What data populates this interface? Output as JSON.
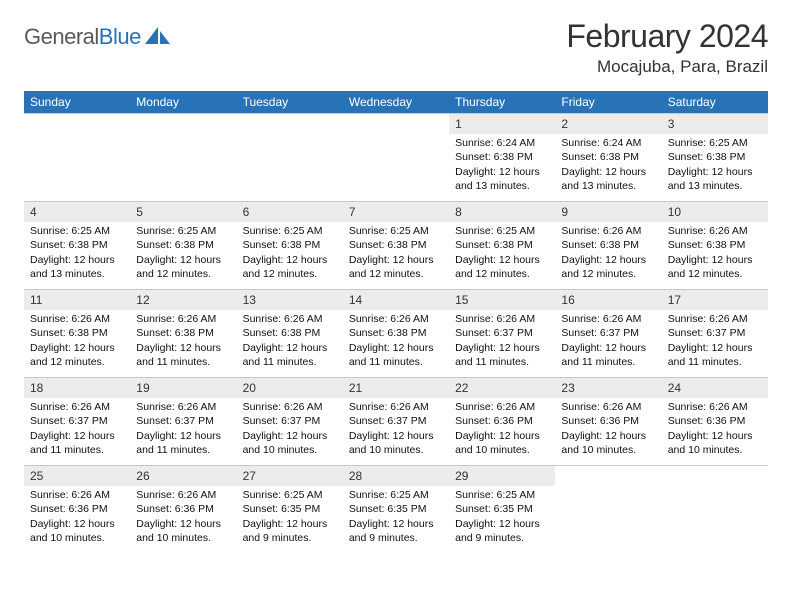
{
  "logo": {
    "text_gray": "General",
    "text_blue": "Blue",
    "icon_fill": "#2873b8"
  },
  "title": "February 2024",
  "location": "Mocajuba, Para, Brazil",
  "colors": {
    "header_bg": "#2873b8",
    "header_text": "#ffffff",
    "daynum_bg": "#ececec",
    "border": "#c8c8c8",
    "text": "#111111"
  },
  "day_headers": [
    "Sunday",
    "Monday",
    "Tuesday",
    "Wednesday",
    "Thursday",
    "Friday",
    "Saturday"
  ],
  "weeks": [
    [
      {
        "n": "",
        "sr": "",
        "ss": "",
        "dl": ""
      },
      {
        "n": "",
        "sr": "",
        "ss": "",
        "dl": ""
      },
      {
        "n": "",
        "sr": "",
        "ss": "",
        "dl": ""
      },
      {
        "n": "",
        "sr": "",
        "ss": "",
        "dl": ""
      },
      {
        "n": "1",
        "sr": "Sunrise: 6:24 AM",
        "ss": "Sunset: 6:38 PM",
        "dl": "Daylight: 12 hours and 13 minutes."
      },
      {
        "n": "2",
        "sr": "Sunrise: 6:24 AM",
        "ss": "Sunset: 6:38 PM",
        "dl": "Daylight: 12 hours and 13 minutes."
      },
      {
        "n": "3",
        "sr": "Sunrise: 6:25 AM",
        "ss": "Sunset: 6:38 PM",
        "dl": "Daylight: 12 hours and 13 minutes."
      }
    ],
    [
      {
        "n": "4",
        "sr": "Sunrise: 6:25 AM",
        "ss": "Sunset: 6:38 PM",
        "dl": "Daylight: 12 hours and 13 minutes."
      },
      {
        "n": "5",
        "sr": "Sunrise: 6:25 AM",
        "ss": "Sunset: 6:38 PM",
        "dl": "Daylight: 12 hours and 12 minutes."
      },
      {
        "n": "6",
        "sr": "Sunrise: 6:25 AM",
        "ss": "Sunset: 6:38 PM",
        "dl": "Daylight: 12 hours and 12 minutes."
      },
      {
        "n": "7",
        "sr": "Sunrise: 6:25 AM",
        "ss": "Sunset: 6:38 PM",
        "dl": "Daylight: 12 hours and 12 minutes."
      },
      {
        "n": "8",
        "sr": "Sunrise: 6:25 AM",
        "ss": "Sunset: 6:38 PM",
        "dl": "Daylight: 12 hours and 12 minutes."
      },
      {
        "n": "9",
        "sr": "Sunrise: 6:26 AM",
        "ss": "Sunset: 6:38 PM",
        "dl": "Daylight: 12 hours and 12 minutes."
      },
      {
        "n": "10",
        "sr": "Sunrise: 6:26 AM",
        "ss": "Sunset: 6:38 PM",
        "dl": "Daylight: 12 hours and 12 minutes."
      }
    ],
    [
      {
        "n": "11",
        "sr": "Sunrise: 6:26 AM",
        "ss": "Sunset: 6:38 PM",
        "dl": "Daylight: 12 hours and 12 minutes."
      },
      {
        "n": "12",
        "sr": "Sunrise: 6:26 AM",
        "ss": "Sunset: 6:38 PM",
        "dl": "Daylight: 12 hours and 11 minutes."
      },
      {
        "n": "13",
        "sr": "Sunrise: 6:26 AM",
        "ss": "Sunset: 6:38 PM",
        "dl": "Daylight: 12 hours and 11 minutes."
      },
      {
        "n": "14",
        "sr": "Sunrise: 6:26 AM",
        "ss": "Sunset: 6:38 PM",
        "dl": "Daylight: 12 hours and 11 minutes."
      },
      {
        "n": "15",
        "sr": "Sunrise: 6:26 AM",
        "ss": "Sunset: 6:37 PM",
        "dl": "Daylight: 12 hours and 11 minutes."
      },
      {
        "n": "16",
        "sr": "Sunrise: 6:26 AM",
        "ss": "Sunset: 6:37 PM",
        "dl": "Daylight: 12 hours and 11 minutes."
      },
      {
        "n": "17",
        "sr": "Sunrise: 6:26 AM",
        "ss": "Sunset: 6:37 PM",
        "dl": "Daylight: 12 hours and 11 minutes."
      }
    ],
    [
      {
        "n": "18",
        "sr": "Sunrise: 6:26 AM",
        "ss": "Sunset: 6:37 PM",
        "dl": "Daylight: 12 hours and 11 minutes."
      },
      {
        "n": "19",
        "sr": "Sunrise: 6:26 AM",
        "ss": "Sunset: 6:37 PM",
        "dl": "Daylight: 12 hours and 11 minutes."
      },
      {
        "n": "20",
        "sr": "Sunrise: 6:26 AM",
        "ss": "Sunset: 6:37 PM",
        "dl": "Daylight: 12 hours and 10 minutes."
      },
      {
        "n": "21",
        "sr": "Sunrise: 6:26 AM",
        "ss": "Sunset: 6:37 PM",
        "dl": "Daylight: 12 hours and 10 minutes."
      },
      {
        "n": "22",
        "sr": "Sunrise: 6:26 AM",
        "ss": "Sunset: 6:36 PM",
        "dl": "Daylight: 12 hours and 10 minutes."
      },
      {
        "n": "23",
        "sr": "Sunrise: 6:26 AM",
        "ss": "Sunset: 6:36 PM",
        "dl": "Daylight: 12 hours and 10 minutes."
      },
      {
        "n": "24",
        "sr": "Sunrise: 6:26 AM",
        "ss": "Sunset: 6:36 PM",
        "dl": "Daylight: 12 hours and 10 minutes."
      }
    ],
    [
      {
        "n": "25",
        "sr": "Sunrise: 6:26 AM",
        "ss": "Sunset: 6:36 PM",
        "dl": "Daylight: 12 hours and 10 minutes."
      },
      {
        "n": "26",
        "sr": "Sunrise: 6:26 AM",
        "ss": "Sunset: 6:36 PM",
        "dl": "Daylight: 12 hours and 10 minutes."
      },
      {
        "n": "27",
        "sr": "Sunrise: 6:25 AM",
        "ss": "Sunset: 6:35 PM",
        "dl": "Daylight: 12 hours and 9 minutes."
      },
      {
        "n": "28",
        "sr": "Sunrise: 6:25 AM",
        "ss": "Sunset: 6:35 PM",
        "dl": "Daylight: 12 hours and 9 minutes."
      },
      {
        "n": "29",
        "sr": "Sunrise: 6:25 AM",
        "ss": "Sunset: 6:35 PM",
        "dl": "Daylight: 12 hours and 9 minutes."
      },
      {
        "n": "",
        "sr": "",
        "ss": "",
        "dl": ""
      },
      {
        "n": "",
        "sr": "",
        "ss": "",
        "dl": ""
      }
    ]
  ]
}
